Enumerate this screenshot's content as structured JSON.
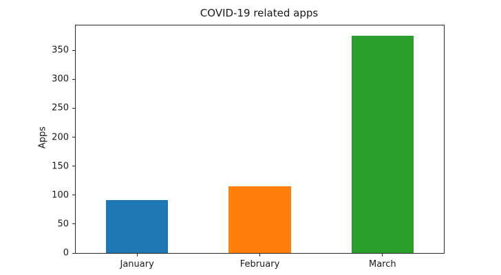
{
  "chart_data": {
    "type": "bar",
    "title": "COVID-19 related apps",
    "xlabel": "",
    "ylabel": "Apps",
    "categories": [
      "January",
      "February",
      "March"
    ],
    "values": [
      91,
      115,
      375
    ],
    "bar_colors": [
      "#1f77b4",
      "#ff7f0e",
      "#2ca02c"
    ],
    "yticks": [
      0,
      50,
      100,
      150,
      200,
      250,
      300,
      350
    ],
    "ylim": [
      0,
      393
    ],
    "bar_rel_width": 0.505,
    "grid": false,
    "legend_position": "none",
    "background_color": "#ffffff",
    "spine_color": "#262626",
    "text_color": "#1a1a1a"
  }
}
